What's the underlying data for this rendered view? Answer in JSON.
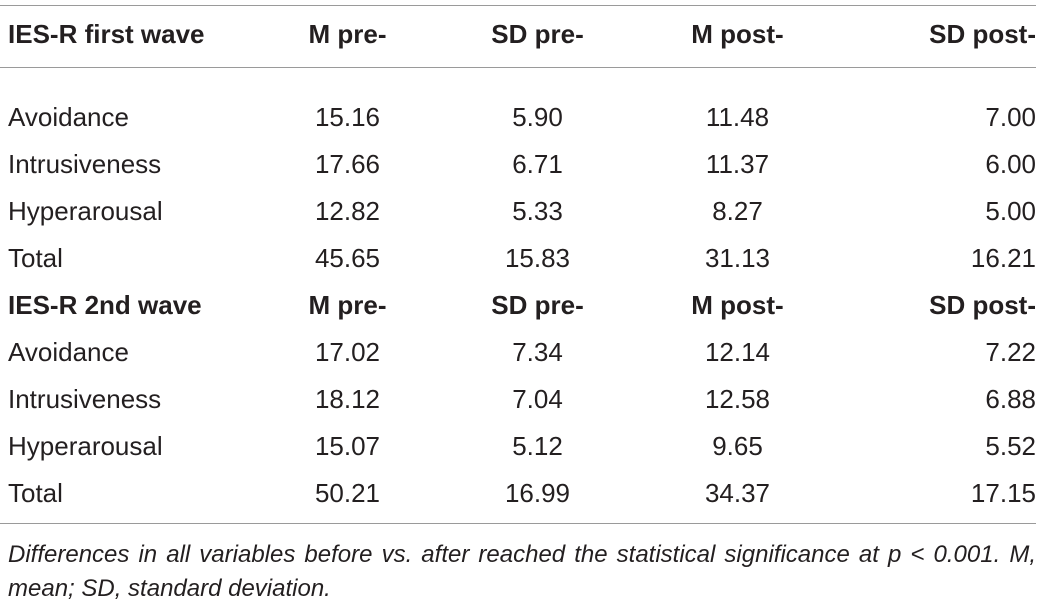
{
  "table": {
    "header": {
      "label": "IES-R first wave",
      "col1": "M pre-",
      "col2": "SD pre-",
      "col3": "M post-",
      "col4": "SD post-"
    },
    "first_wave_rows": [
      {
        "label": "Avoidance",
        "m_pre": "15.16",
        "sd_pre": "5.90",
        "m_post": "11.48",
        "sd_post": "7.00"
      },
      {
        "label": "Intrusiveness",
        "m_pre": "17.66",
        "sd_pre": "6.71",
        "m_post": "11.37",
        "sd_post": "6.00"
      },
      {
        "label": "Hyperarousal",
        "m_pre": "12.82",
        "sd_pre": "5.33",
        "m_post": "8.27",
        "sd_post": "5.00"
      },
      {
        "label": "Total",
        "m_pre": "45.65",
        "sd_pre": "15.83",
        "m_post": "31.13",
        "sd_post": "16.21"
      }
    ],
    "second_wave_header": {
      "label": "IES-R 2nd wave",
      "col1": "M pre-",
      "col2": "SD pre-",
      "col3": "M post-",
      "col4": "SD post-"
    },
    "second_wave_rows": [
      {
        "label": "Avoidance",
        "m_pre": "17.02",
        "sd_pre": "7.34",
        "m_post": "12.14",
        "sd_post": "7.22"
      },
      {
        "label": "Intrusiveness",
        "m_pre": "18.12",
        "sd_pre": "7.04",
        "m_post": "12.58",
        "sd_post": "6.88"
      },
      {
        "label": "Hyperarousal",
        "m_pre": "15.07",
        "sd_pre": "5.12",
        "m_post": "9.65",
        "sd_post": "5.52"
      },
      {
        "label": "Total",
        "m_pre": "50.21",
        "sd_pre": "16.99",
        "m_post": "34.37",
        "sd_post": "17.15"
      }
    ]
  },
  "footnote": "Differences in all variables before vs. after reached the statistical significance at p < 0.001. M, mean; SD, standard deviation."
}
